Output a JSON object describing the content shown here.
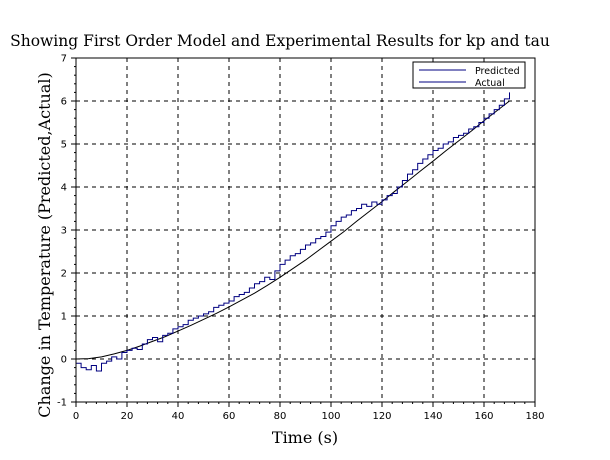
{
  "chart_data": {
    "type": "line",
    "title": "Showing First Order Model and Experimental Results for kp and tau",
    "xlabel": "Time (s)",
    "ylabel": "Change in Temperature (Predicted,Actual)",
    "xlim": [
      0,
      180
    ],
    "ylim": [
      -1,
      7
    ],
    "xticks": [
      "0",
      "20",
      "40",
      "60",
      "80",
      "100",
      "120",
      "140",
      "160",
      "180"
    ],
    "yticks": [
      "-1",
      "0",
      "1",
      "2",
      "3",
      "4",
      "5",
      "6",
      "7"
    ],
    "grid": true,
    "legend_position": "top-right",
    "legend": [
      "Predicted",
      "Actual"
    ],
    "series": [
      {
        "name": "Predicted",
        "color": "#000000",
        "style": "solid",
        "x": [
          0,
          5,
          10,
          15,
          20,
          25,
          30,
          35,
          40,
          45,
          50,
          55,
          60,
          65,
          70,
          75,
          80,
          85,
          90,
          95,
          100,
          105,
          110,
          115,
          120,
          125,
          130,
          135,
          140,
          145,
          150,
          155,
          160,
          165,
          170
        ],
        "values": [
          0.0,
          0.01,
          0.05,
          0.12,
          0.2,
          0.3,
          0.41,
          0.52,
          0.65,
          0.78,
          0.92,
          1.06,
          1.21,
          1.37,
          1.53,
          1.71,
          1.9,
          2.1,
          2.3,
          2.52,
          2.74,
          2.96,
          3.2,
          3.43,
          3.66,
          3.9,
          4.13,
          4.37,
          4.6,
          4.84,
          5.07,
          5.3,
          5.54,
          5.77,
          6.0
        ]
      },
      {
        "name": "Actual",
        "color": "#000080",
        "style": "step",
        "x": [
          0,
          2,
          4,
          6,
          8,
          10,
          12,
          14,
          16,
          18,
          20,
          22,
          24,
          26,
          28,
          30,
          32,
          34,
          36,
          38,
          40,
          42,
          44,
          46,
          48,
          50,
          52,
          54,
          56,
          58,
          60,
          62,
          64,
          66,
          68,
          70,
          72,
          74,
          76,
          78,
          80,
          82,
          84,
          86,
          88,
          90,
          92,
          94,
          96,
          98,
          100,
          102,
          104,
          106,
          108,
          110,
          112,
          114,
          116,
          118,
          120,
          122,
          124,
          126,
          128,
          130,
          132,
          134,
          136,
          138,
          140,
          142,
          144,
          146,
          148,
          150,
          152,
          154,
          156,
          158,
          160,
          162,
          164,
          166,
          168,
          170
        ],
        "values": [
          -0.1,
          -0.2,
          -0.25,
          -0.15,
          -0.28,
          -0.1,
          -0.05,
          0.05,
          0.0,
          0.15,
          0.2,
          0.25,
          0.22,
          0.35,
          0.45,
          0.5,
          0.4,
          0.55,
          0.6,
          0.7,
          0.75,
          0.8,
          0.9,
          0.95,
          1.0,
          1.05,
          1.1,
          1.2,
          1.25,
          1.3,
          1.35,
          1.45,
          1.5,
          1.55,
          1.65,
          1.75,
          1.8,
          1.9,
          1.85,
          2.05,
          2.2,
          2.3,
          2.4,
          2.45,
          2.55,
          2.65,
          2.7,
          2.8,
          2.85,
          2.95,
          3.1,
          3.2,
          3.3,
          3.35,
          3.45,
          3.5,
          3.6,
          3.55,
          3.65,
          3.6,
          3.7,
          3.8,
          3.85,
          4.0,
          4.15,
          4.3,
          4.4,
          4.55,
          4.65,
          4.75,
          4.85,
          4.9,
          5.0,
          5.05,
          5.15,
          5.2,
          5.25,
          5.35,
          5.4,
          5.5,
          5.6,
          5.7,
          5.8,
          5.9,
          6.05,
          6.2
        ]
      }
    ]
  }
}
